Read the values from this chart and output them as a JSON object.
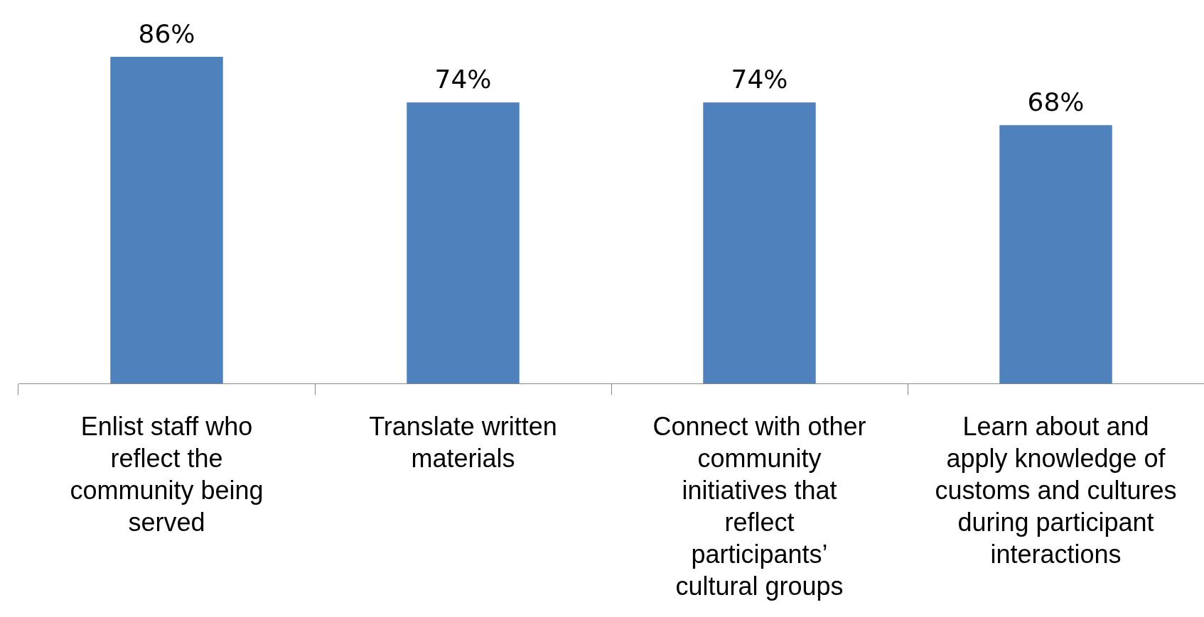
{
  "chart_data": {
    "type": "bar",
    "categories": [
      "Enlist staff who reflect the community being served",
      "Translate written materials",
      "Connect with other community initiatives that reflect participants’ cultural groups",
      "Learn about and apply knowledge of customs and cultures during participant interactions"
    ],
    "values": [
      86,
      74,
      74,
      68
    ],
    "value_labels": [
      "86%",
      "74%",
      "74%",
      "68%"
    ],
    "color": "#4f81bd",
    "tick_labels": "x",
    "grid": false
  }
}
